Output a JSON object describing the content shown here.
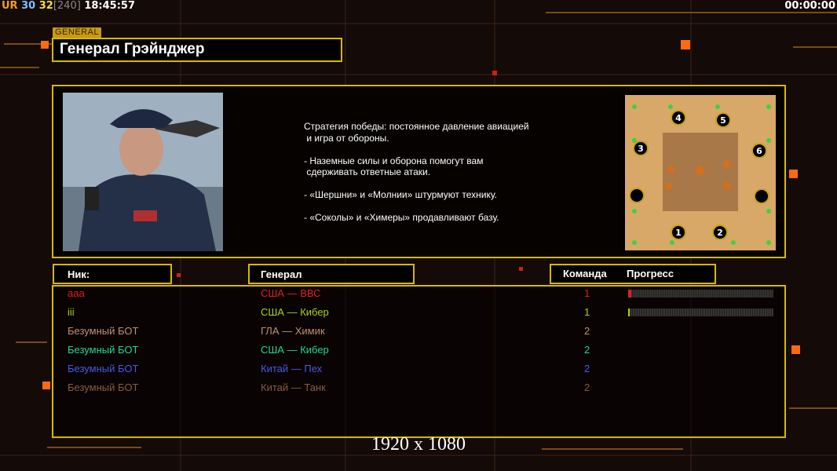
{
  "hud": {
    "ur": "UR",
    "fps1": "30",
    "fps2": "32",
    "limit": "[240]",
    "clock": "18:45:57",
    "timer": "00:00:00"
  },
  "general": {
    "section_label": "GENERAL",
    "name": "Генерал Грэйнджер",
    "briefing": "Стратегия победы: постоянное давление авиацией\n и игра от обороны.\n\n- Наземные силы и оборона помогут вам\n сдерживать ответные атаки.\n\n- «Шершни» и «Молнии» штурмуют технику.\n\n- «Соколы» и «Химеры» продавливают базу."
  },
  "map": {
    "start_positions": [
      "1",
      "2",
      "3",
      "4",
      "5",
      "6"
    ]
  },
  "table": {
    "headers": {
      "nick": "Ник:",
      "general": "Генерал",
      "team": "Команда",
      "progress": "Прогресс"
    },
    "players": [
      {
        "nick": "aaa",
        "general": "США — ВВС",
        "team": "1",
        "color": "#e02020",
        "progress": 2
      },
      {
        "nick": "iii",
        "general": "США — Кибер",
        "team": "1",
        "color": "#a8d020",
        "progress": 1
      },
      {
        "nick": "Безумный БОТ",
        "general": "ГЛА — Химик",
        "team": "2",
        "color": "#c09072"
      },
      {
        "nick": "Безумный БОТ",
        "general": "США — Кибер",
        "team": "2",
        "color": "#20d890"
      },
      {
        "nick": "Безумный БОТ",
        "general": "Китай — Пех",
        "team": "2",
        "color": "#4858e8"
      },
      {
        "nick": "Безумный БОТ",
        "general": "Китай — Танк",
        "team": "2",
        "color": "#8a5a40"
      }
    ]
  },
  "resolution": "1920 x 1080"
}
